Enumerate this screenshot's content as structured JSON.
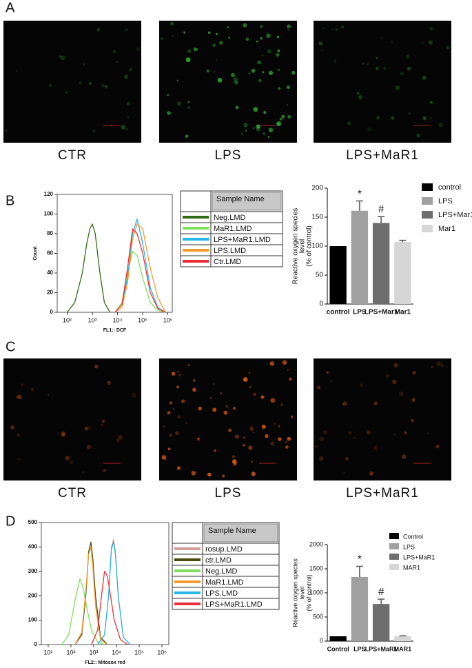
{
  "panels": [
    {
      "label": "A",
      "captions": [
        "CTR",
        "LPS",
        "LPS+MaR1"
      ]
    },
    {
      "label": "B"
    },
    {
      "label": "C",
      "captions": [
        "CTR",
        "LPS",
        "LPS+MaR1"
      ]
    },
    {
      "label": "D"
    }
  ],
  "chart_data": [
    {
      "type": "line",
      "x_scale": "log",
      "x_label": "FL1:: DCF",
      "y_label": "Count",
      "legend_header": "Sample Name",
      "xlim": [
        40,
        1500000
      ],
      "ylim": [
        0,
        120
      ],
      "xticks": [
        {
          "value": 100,
          "label": "10²"
        },
        {
          "value": 1000,
          "label": "10³"
        },
        {
          "value": 10000,
          "label": "10⁴"
        },
        {
          "value": 100000,
          "label": "10⁵"
        },
        {
          "value": 1000000,
          "label": "10⁶"
        }
      ],
      "yticks": [
        0,
        20,
        40,
        60,
        80,
        100,
        120
      ],
      "series": [
        {
          "name": "Neg.LMD",
          "color": "#2e6b12",
          "x": [
            100,
            200,
            400,
            600,
            800,
            1000,
            1300,
            2000,
            3000,
            5000
          ],
          "values": [
            0,
            10,
            40,
            70,
            85,
            90,
            80,
            40,
            10,
            0
          ]
        },
        {
          "name": "MaR1.LMD",
          "color": "#7de05a",
          "x": [
            8000,
            15000,
            25000,
            40000,
            60000,
            100000,
            200000,
            400000,
            800000
          ],
          "values": [
            0,
            10,
            40,
            62,
            58,
            35,
            10,
            2,
            0
          ]
        },
        {
          "name": "LPS+MaR1.LMD",
          "color": "#29b6e8",
          "x": [
            8000,
            15000,
            25000,
            40000,
            60000,
            100000,
            200000,
            400000,
            800000
          ],
          "values": [
            0,
            8,
            35,
            80,
            95,
            70,
            25,
            5,
            0
          ]
        },
        {
          "name": "LPS.LMD",
          "color": "#f39a2c",
          "x": [
            8000,
            15000,
            25000,
            40000,
            60000,
            100000,
            200000,
            400000,
            800000
          ],
          "values": [
            0,
            5,
            30,
            75,
            90,
            85,
            45,
            15,
            0
          ]
        },
        {
          "name": "Ctr.LMD",
          "color": "#e8303a",
          "x": [
            8000,
            15000,
            25000,
            40000,
            60000,
            100000,
            200000,
            400000,
            800000
          ],
          "values": [
            0,
            8,
            45,
            85,
            80,
            60,
            20,
            4,
            0
          ]
        }
      ]
    },
    {
      "type": "bar",
      "y_label": [
        "Reactive oxygen species",
        "level",
        "(% of control)"
      ],
      "categories": [
        "control",
        "LPS",
        "LPS+Mar1",
        "Mar1"
      ],
      "values": [
        100,
        161,
        140,
        107
      ],
      "errors": [
        0,
        17,
        11,
        3
      ],
      "colors": [
        "#000000",
        "#a0a0a0",
        "#6e6e6e",
        "#d6d6d6"
      ],
      "ylim": [
        0,
        200
      ],
      "yticks": [
        0,
        50,
        100,
        150,
        200
      ],
      "annotations": [
        {
          "text": "*",
          "category": "LPS"
        },
        {
          "text": "#",
          "category": "LPS+Mar1"
        }
      ]
    },
    {
      "type": "line",
      "x_scale": "log",
      "x_label": "FL2:: Mitosox red",
      "legend_header": "Sample Name",
      "xlim": [
        5,
        2000000
      ],
      "ylim": [
        0,
        500
      ],
      "xticks": [
        {
          "value": 10,
          "label": "10¹"
        },
        {
          "value": 100,
          "label": "10²"
        },
        {
          "value": 1000,
          "label": "10³"
        },
        {
          "value": 10000,
          "label": "10⁴"
        },
        {
          "value": 100000,
          "label": "10⁵"
        },
        {
          "value": 1000000,
          "label": "10⁶"
        }
      ],
      "yticks": [
        0,
        100,
        200,
        300,
        400,
        500
      ],
      "series": [
        {
          "name": "rosup.LMD",
          "color": "#d49a9a",
          "x": [
            1500,
            3000,
            4500,
            6000,
            7500,
            9000,
            12000,
            20000,
            40000
          ],
          "values": [
            0,
            40,
            200,
            400,
            430,
            380,
            200,
            30,
            0
          ]
        },
        {
          "name": "ctr.LMD",
          "color": "#4a4a10",
          "x": [
            150,
            300,
            450,
            600,
            750,
            900,
            1200,
            2000,
            4000
          ],
          "values": [
            0,
            40,
            200,
            380,
            420,
            360,
            200,
            30,
            0
          ]
        },
        {
          "name": "Neg.LMD",
          "color": "#7de05a",
          "x": [
            40,
            80,
            150,
            250,
            350,
            500,
            800,
            1500,
            3000
          ],
          "values": [
            0,
            40,
            180,
            270,
            230,
            150,
            60,
            10,
            0
          ]
        },
        {
          "name": "MaR1.LMD",
          "color": "#f39a2c",
          "x": [
            150,
            300,
            450,
            600,
            750,
            900,
            1200,
            2000,
            4000
          ],
          "values": [
            0,
            50,
            220,
            370,
            400,
            330,
            160,
            20,
            0
          ]
        },
        {
          "name": "LPS.LMD",
          "color": "#29b6e8",
          "x": [
            1500,
            3000,
            4500,
            6000,
            7500,
            9000,
            12000,
            20000,
            40000
          ],
          "values": [
            0,
            40,
            200,
            390,
            420,
            370,
            200,
            30,
            0
          ]
        },
        {
          "name": "LPS+MaR1.LMD",
          "color": "#e8303a",
          "x": [
            800,
            1500,
            2200,
            3000,
            4000,
            5500,
            8000,
            15000,
            30000
          ],
          "values": [
            0,
            60,
            200,
            300,
            280,
            200,
            100,
            20,
            0
          ]
        }
      ]
    },
    {
      "type": "bar",
      "y_label": [
        "Reactive oxygen species",
        "level",
        "(% of control)"
      ],
      "categories": [
        "Control",
        "LPS",
        "LPS+MaR1",
        "MAR1"
      ],
      "values": [
        100,
        1330,
        770,
        100
      ],
      "errors": [
        0,
        220,
        100,
        10
      ],
      "colors": [
        "#000000",
        "#a0a0a0",
        "#6e6e6e",
        "#d6d6d6"
      ],
      "ylim": [
        0,
        2000
      ],
      "yticks": [
        0,
        500,
        1000,
        1500,
        2000
      ],
      "annotations": [
        {
          "text": "*",
          "category": "LPS"
        },
        {
          "text": "#",
          "category": "LPS+MaR1"
        }
      ]
    }
  ]
}
